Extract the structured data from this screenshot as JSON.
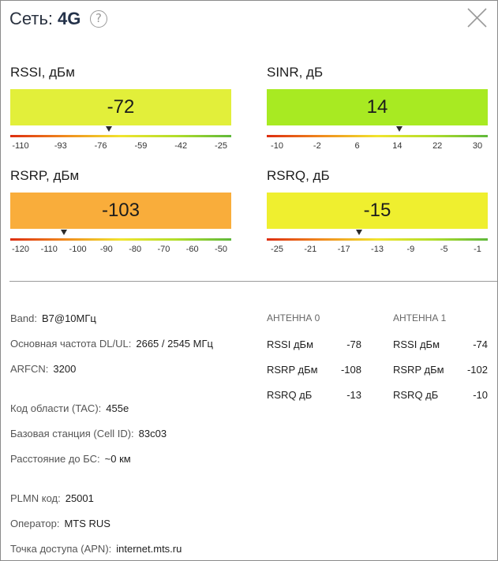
{
  "header": {
    "title_prefix": "Сеть:",
    "network_type": "4G",
    "help_symbol": "?",
    "icons": {
      "help": "question-circle-icon",
      "close": "close-x-icon"
    }
  },
  "metrics": {
    "rssi": {
      "label": "RSSI, дБм",
      "value": "-72",
      "color": "#e2ef3a",
      "pointer_value": -72,
      "range": [
        -110,
        -25
      ],
      "ticks": [
        "-110",
        "-93",
        "-76",
        "-59",
        "-42",
        "-25"
      ]
    },
    "sinr": {
      "label": "SINR, дБ",
      "value": "14",
      "color": "#a8ea22",
      "pointer_value": 14,
      "range": [
        -10,
        30
      ],
      "ticks": [
        "-10",
        "-2",
        "6",
        "14",
        "22",
        "30"
      ]
    },
    "rsrp": {
      "label": "RSRP, дБм",
      "value": "-103",
      "color": "#f9ad3b",
      "pointer_value": -103,
      "range": [
        -120,
        -50
      ],
      "ticks": [
        "-120",
        "-110",
        "-100",
        "-90",
        "-80",
        "-70",
        "-60",
        "-50"
      ]
    },
    "rsrq": {
      "label": "RSRQ, дБ",
      "value": "-15",
      "color": "#efef2f",
      "pointer_value": -15,
      "range": [
        -25,
        -1
      ],
      "ticks": [
        "-25",
        "-21",
        "-17",
        "-13",
        "-9",
        "-5",
        "-1"
      ]
    }
  },
  "info": {
    "band_label": "Band:",
    "band_value": "B7@10МГц",
    "freq_label": "Основная частота DL/UL:",
    "freq_value": "2665 / 2545 МГц",
    "arfcn_label": "ARFCN:",
    "arfcn_value": "3200",
    "tac_label": "Код области (TAC):",
    "tac_value": "455e",
    "cell_label": "Базовая станция (Cell ID):",
    "cell_value": "83c03",
    "dist_label": "Расстояние до БС:",
    "dist_value": "~0 км",
    "plmn_label": "PLMN код:",
    "plmn_value": "25001",
    "operator_label": "Оператор:",
    "operator_value": "MTS RUS",
    "apn_label": "Точка доступа (APN):",
    "apn_value": "internet.mts.ru"
  },
  "antennas": [
    {
      "header": "АНТЕННА 0",
      "rows": [
        {
          "label": "RSSI дБм",
          "value": "-78"
        },
        {
          "label": "RSRP дБм",
          "value": "-108"
        },
        {
          "label": "RSRQ дБ",
          "value": "-13"
        }
      ]
    },
    {
      "header": "АНТЕННА 1",
      "rows": [
        {
          "label": "RSSI дБм",
          "value": "-74"
        },
        {
          "label": "RSRP дБм",
          "value": "-102"
        },
        {
          "label": "RSRQ дБ",
          "value": "-10"
        }
      ]
    }
  ]
}
